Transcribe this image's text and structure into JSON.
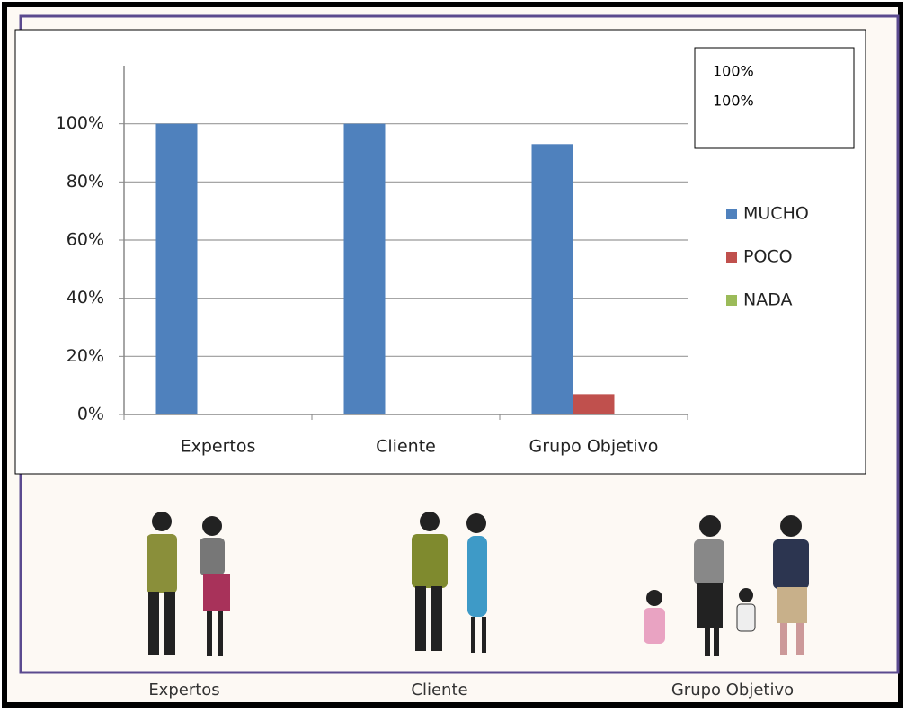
{
  "chart_data": {
    "type": "bar",
    "categories": [
      "Expertos",
      "Cliente",
      "Grupo Objetivo"
    ],
    "series": [
      {
        "name": "MUCHO",
        "color": "#4f81bd",
        "values": [
          100,
          100,
          93
        ]
      },
      {
        "name": "POCO",
        "color": "#c0504d",
        "values": [
          0,
          0,
          7
        ]
      },
      {
        "name": "NADA",
        "color": "#9bbb59",
        "values": [
          0,
          0,
          0
        ]
      }
    ],
    "ylim": [
      0,
      120
    ],
    "yticks": [
      {
        "value": 0,
        "label": "0%"
      },
      {
        "value": 20,
        "label": "20%"
      },
      {
        "value": 40,
        "label": "40%"
      },
      {
        "value": 60,
        "label": "60%"
      },
      {
        "value": 80,
        "label": "80%"
      },
      {
        "value": 100,
        "label": "100%"
      }
    ],
    "grid": true,
    "legend": "right",
    "annotations": [
      "100%",
      "100%"
    ]
  },
  "illustration_labels": [
    "Expertos",
    "Cliente",
    "Grupo Objetivo"
  ]
}
